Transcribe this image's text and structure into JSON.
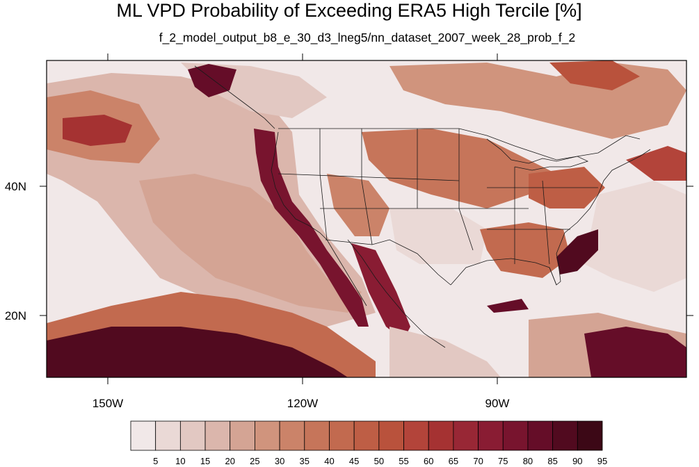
{
  "title": "ML VPD Probability of Exceeding ERA5 High Tercile [%]",
  "subtitle": "f_2_model_output_b8_e_30_d3_lneg5/nn_dataset_2007_week_28_prob_f_2",
  "map": {
    "projection": "cylindrical equidistant",
    "region": "Contiguous United States and adjacent Pacific Ocean",
    "lon_range": [
      -160,
      -62
    ],
    "lat_range": [
      11,
      60
    ],
    "lon_ticks": [
      "150W",
      "120W",
      "90W"
    ],
    "lat_ticks": [
      "40N",
      "20N"
    ],
    "overlays": [
      "coastlines",
      "country borders",
      "US state borders"
    ]
  },
  "colorbar": {
    "labels": [
      "5",
      "10",
      "15",
      "20",
      "25",
      "30",
      "35",
      "40",
      "45",
      "50",
      "55",
      "60",
      "65",
      "70",
      "75",
      "80",
      "85",
      "90",
      "95"
    ],
    "colors": [
      "#f1e8e8",
      "#ead9d6",
      "#e2c8c2",
      "#dbb6ac",
      "#d4a494",
      "#d0947d",
      "#cb8369",
      "#c6755a",
      "#c26a4f",
      "#be5e45",
      "#b9523c",
      "#b3443a",
      "#a53232",
      "#982735",
      "#891c33",
      "#78142e",
      "#650d28",
      "#510a1f",
      "#3c0816"
    ]
  },
  "highlights": [
    {
      "region": "subtropical Pacific south of 20N",
      "level_pct": 95
    },
    {
      "region": "California and Baja coast",
      "level_pct": 95
    },
    {
      "region": "Vancouver Island / Pacific Northwest coast",
      "level_pct": 95
    },
    {
      "region": "Atlantic east of Georgia-Carolina coast",
      "level_pct": 90
    },
    {
      "region": "Gulf of Mexico",
      "level_pct": 5
    }
  ]
}
